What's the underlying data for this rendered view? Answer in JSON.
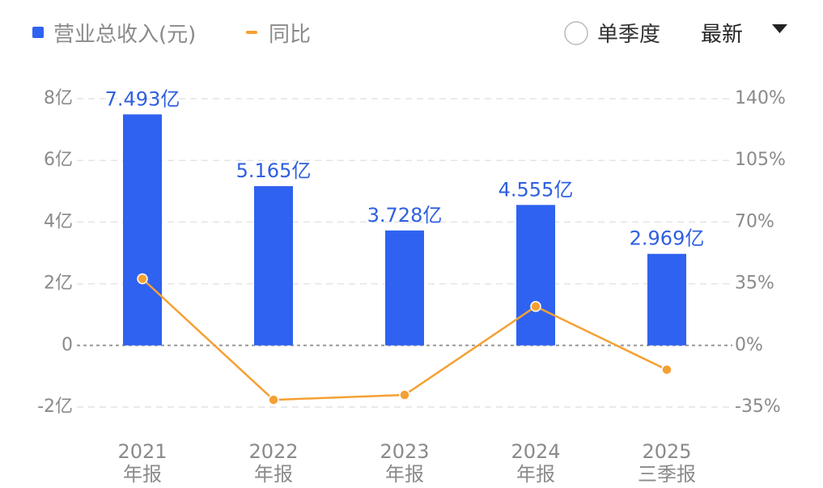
{
  "chart_data": {
    "type": "bar_line",
    "categories": [
      "2021\n年报",
      "2022\n年报",
      "2023\n年报",
      "2024\n年报",
      "2025\n三季报"
    ],
    "series": [
      {
        "name": "营业总收入(元)",
        "color": "#2f62f0",
        "type": "bar",
        "values": [
          7.493,
          5.165,
          3.728,
          4.555,
          2.969
        ],
        "value_labels": [
          "7.493亿",
          "5.165亿",
          "3.728亿",
          "4.555亿",
          "2.969亿"
        ]
      },
      {
        "name": "同比",
        "color": "#f5a033",
        "type": "line",
        "axis": "y2",
        "values": [
          37.8,
          -30.9,
          -28.1,
          22.1,
          -13.8
        ]
      }
    ],
    "ylim": [
      -2,
      8
    ],
    "yticks": [
      {
        "value": 8,
        "label": "8亿"
      },
      {
        "value": 6,
        "label": "6亿"
      },
      {
        "value": 4,
        "label": "4亿"
      },
      {
        "value": 2,
        "label": "2亿"
      },
      0,
      {
        "value": -2,
        "label": "-2亿"
      }
    ],
    "y2lim": [
      -35,
      140
    ],
    "y2ticks": [
      {
        "value": 140,
        "label": "140%"
      },
      {
        "value": 105,
        "label": "105%"
      },
      {
        "value": 70,
        "label": "70%"
      },
      {
        "value": 35,
        "label": "35%"
      },
      {
        "value": 0,
        "label": "0%"
      },
      {
        "value": -35,
        "label": "-35%"
      }
    ],
    "grid": true,
    "controls": {
      "quarterly": "单季度",
      "period": "最新"
    }
  }
}
